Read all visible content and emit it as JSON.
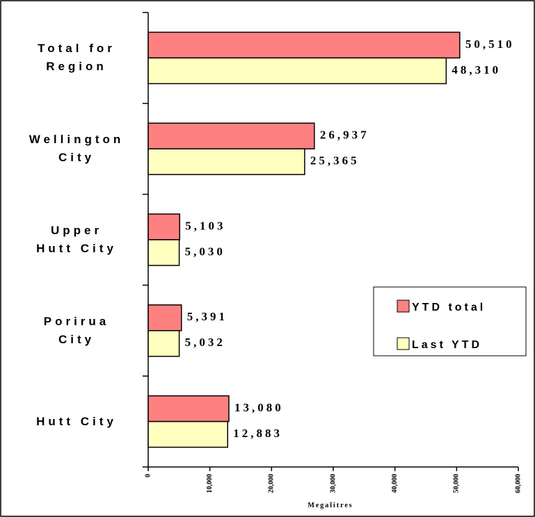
{
  "chart_data": {
    "type": "bar",
    "orientation": "horizontal",
    "categories": [
      "Total for\nRegion",
      "Wellington\nCity",
      "Upper\nHutt City",
      "Porirua\nCity",
      "Hutt City"
    ],
    "series": [
      {
        "name": "YTD total",
        "color": "#ff8080",
        "values": [
          50510,
          26937,
          5103,
          5391,
          13080
        ],
        "value_labels": [
          "50,510",
          "26,937",
          "5,103",
          "5,391",
          "13,080"
        ]
      },
      {
        "name": "Last YTD",
        "color": "#ffffc0",
        "values": [
          48310,
          25365,
          5030,
          5032,
          12883
        ],
        "value_labels": [
          "48,310",
          "25,365",
          "5,030",
          "5,032",
          "12,883"
        ]
      }
    ],
    "xlabel": "Megalitres",
    "xlim": [
      0,
      60000
    ],
    "xticks": [
      0,
      {
        "value": 10000,
        "label": "10,000"
      },
      {
        "value": 20000,
        "label": "20,000"
      },
      {
        "value": 30000,
        "label": "30,000"
      },
      {
        "value": 40000,
        "label": "40,000"
      },
      {
        "value": 50000,
        "label": "50,000"
      },
      {
        "value": 60000,
        "label": "60,000"
      }
    ],
    "legend": "right"
  }
}
